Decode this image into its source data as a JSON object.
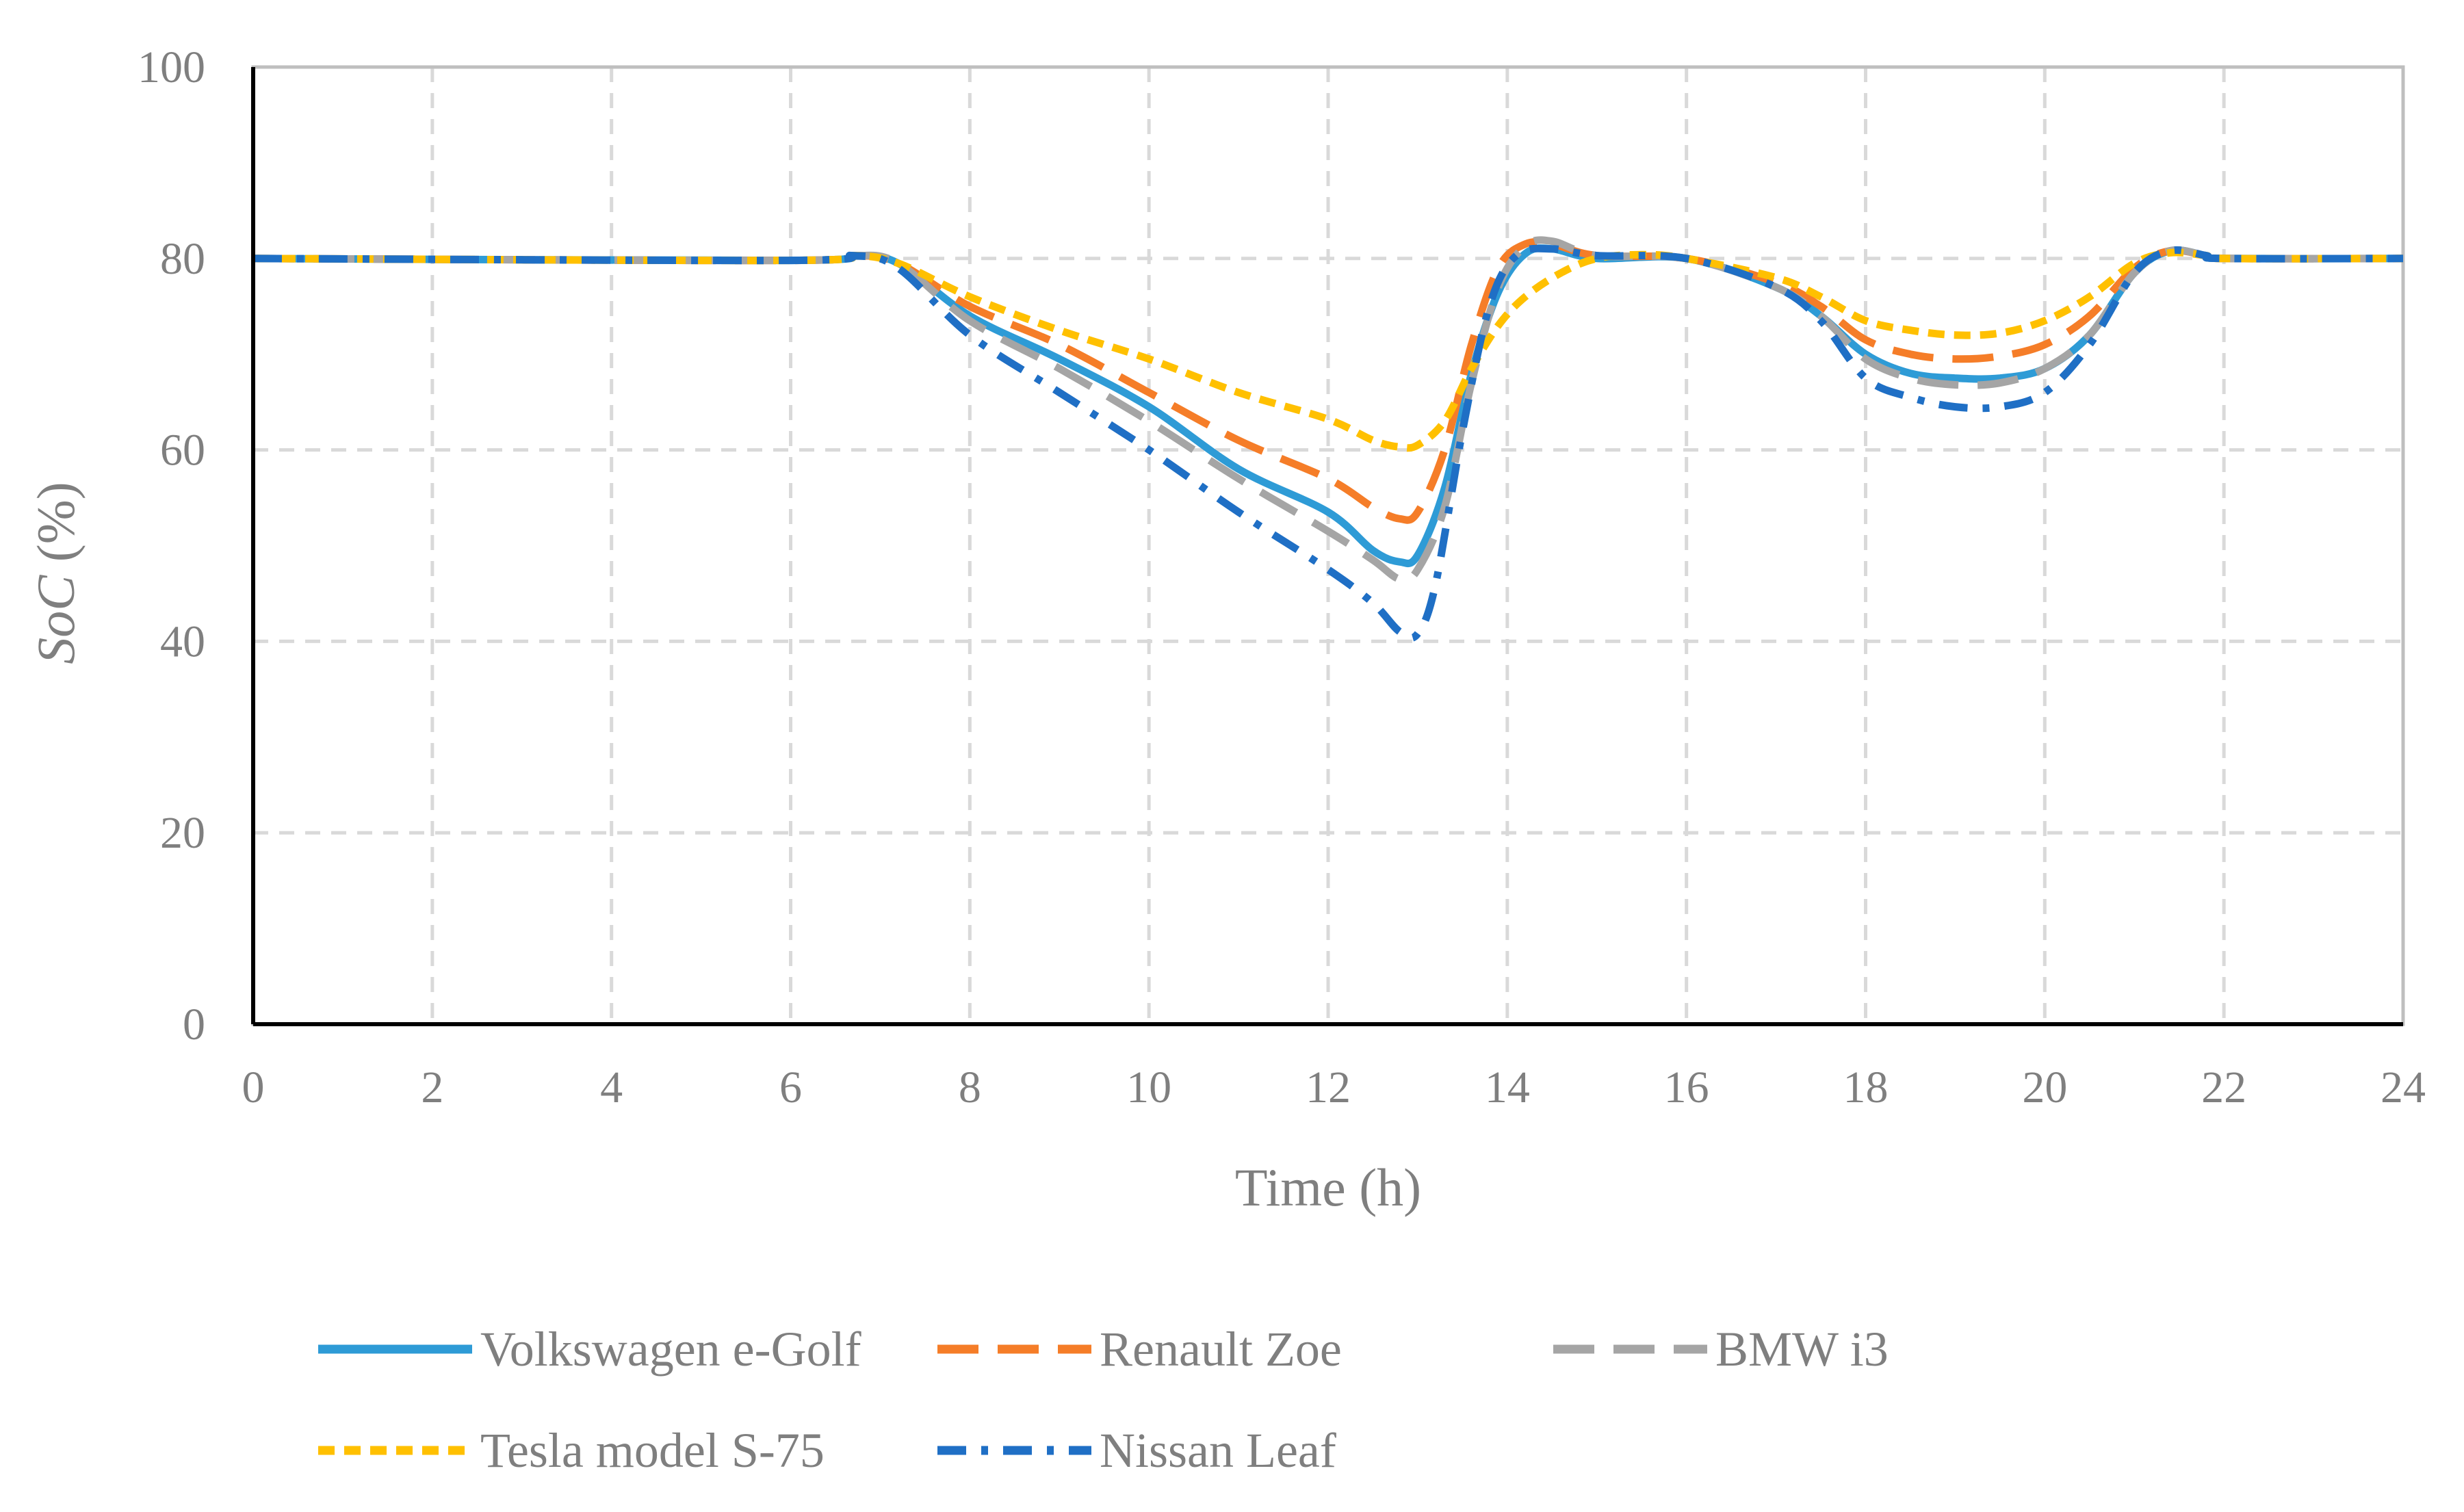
{
  "chart_data": {
    "type": "line",
    "title": "",
    "xlabel": "Time (h)",
    "ylabel_italic": "SoC",
    "ylabel_rest": " (%)",
    "xlim": [
      0,
      24
    ],
    "ylim": [
      0,
      100
    ],
    "x_ticks": [
      "0",
      "2",
      "4",
      "6",
      "8",
      "10",
      "12",
      "14",
      "16",
      "18",
      "20",
      "22",
      "24"
    ],
    "y_ticks": [
      "0",
      "20",
      "40",
      "60",
      "80",
      "100"
    ],
    "grid": true,
    "legend_position": "bottom",
    "series": [
      {
        "name": "Volkswagen e-Golf",
        "color": "#2e9bd6",
        "style": "solid",
        "points": [
          [
            0,
            80
          ],
          [
            6,
            79.8
          ],
          [
            6.7,
            80.3
          ],
          [
            7.2,
            79.5
          ],
          [
            8,
            74
          ],
          [
            9,
            69.5
          ],
          [
            10,
            64.5
          ],
          [
            11,
            58
          ],
          [
            12,
            53.5
          ],
          [
            12.5,
            49.5
          ],
          [
            12.8,
            48.3
          ],
          [
            13,
            49
          ],
          [
            13.3,
            56
          ],
          [
            13.6,
            68
          ],
          [
            13.9,
            76.5
          ],
          [
            14.2,
            80.5
          ],
          [
            14.5,
            81
          ],
          [
            15,
            80
          ],
          [
            16,
            80
          ],
          [
            17,
            77
          ],
          [
            17.5,
            74
          ],
          [
            18,
            70
          ],
          [
            18.5,
            68
          ],
          [
            19,
            67.5
          ],
          [
            19.5,
            67.5
          ],
          [
            20,
            68.5
          ],
          [
            20.5,
            72
          ],
          [
            21,
            78.5
          ],
          [
            21.4,
            80.8
          ],
          [
            21.8,
            80.3
          ],
          [
            22,
            80
          ],
          [
            24,
            80
          ]
        ]
      },
      {
        "name": "Renault Zoe",
        "color": "#f57d28",
        "style": "dash",
        "points": [
          [
            0,
            80
          ],
          [
            6,
            79.8
          ],
          [
            6.7,
            80.3
          ],
          [
            7.2,
            79.5
          ],
          [
            8,
            75
          ],
          [
            9,
            71
          ],
          [
            10,
            66
          ],
          [
            11,
            61
          ],
          [
            12,
            57
          ],
          [
            12.5,
            54
          ],
          [
            12.8,
            52.8
          ],
          [
            13,
            53.5
          ],
          [
            13.3,
            60
          ],
          [
            13.6,
            71
          ],
          [
            13.9,
            79
          ],
          [
            14.2,
            81.5
          ],
          [
            14.5,
            81.5
          ],
          [
            15,
            80.3
          ],
          [
            16,
            80
          ],
          [
            17,
            77.5
          ],
          [
            17.5,
            75
          ],
          [
            18,
            71.5
          ],
          [
            18.5,
            70
          ],
          [
            19,
            69.5
          ],
          [
            19.5,
            69.8
          ],
          [
            20,
            71
          ],
          [
            20.5,
            74
          ],
          [
            21,
            79
          ],
          [
            21.4,
            80.8
          ],
          [
            21.8,
            80.3
          ],
          [
            22,
            80
          ],
          [
            24,
            80
          ]
        ]
      },
      {
        "name": "BMW i3",
        "color": "#a5a5a5",
        "style": "dash",
        "points": [
          [
            0,
            80
          ],
          [
            6,
            79.8
          ],
          [
            6.7,
            80.3
          ],
          [
            7.2,
            79.5
          ],
          [
            8,
            73.5
          ],
          [
            9,
            68.5
          ],
          [
            10,
            63
          ],
          [
            11,
            57
          ],
          [
            12,
            51.5
          ],
          [
            12.5,
            48.5
          ],
          [
            12.8,
            46.5
          ],
          [
            13,
            47.5
          ],
          [
            13.3,
            54
          ],
          [
            13.6,
            67
          ],
          [
            13.9,
            77
          ],
          [
            14.2,
            81.3
          ],
          [
            14.5,
            81.8
          ],
          [
            15,
            80.3
          ],
          [
            16,
            80
          ],
          [
            17,
            77
          ],
          [
            17.5,
            74
          ],
          [
            18,
            69.5
          ],
          [
            18.5,
            67.5
          ],
          [
            19,
            66.8
          ],
          [
            19.5,
            67
          ],
          [
            20,
            68.5
          ],
          [
            20.5,
            72
          ],
          [
            21,
            78.5
          ],
          [
            21.4,
            80.8
          ],
          [
            21.8,
            80.3
          ],
          [
            22,
            80
          ],
          [
            24,
            80
          ]
        ]
      },
      {
        "name": "Tesla model S-75",
        "color": "#ffc000",
        "style": "shortdash",
        "points": [
          [
            0,
            80
          ],
          [
            6,
            79.8
          ],
          [
            6.7,
            80.3
          ],
          [
            7.2,
            79.5
          ],
          [
            8,
            76
          ],
          [
            9,
            72.5
          ],
          [
            10,
            69.5
          ],
          [
            11,
            66
          ],
          [
            12,
            63.2
          ],
          [
            12.5,
            61
          ],
          [
            12.8,
            60.3
          ],
          [
            13,
            60.5
          ],
          [
            13.3,
            63
          ],
          [
            13.6,
            68.5
          ],
          [
            13.9,
            73
          ],
          [
            14.2,
            76
          ],
          [
            14.6,
            78.5
          ],
          [
            15,
            80
          ],
          [
            15.5,
            80.4
          ],
          [
            16,
            80
          ],
          [
            17,
            78
          ],
          [
            17.5,
            76
          ],
          [
            18,
            73.5
          ],
          [
            18.5,
            72.5
          ],
          [
            19,
            72
          ],
          [
            19.5,
            72.2
          ],
          [
            20,
            73.5
          ],
          [
            20.5,
            76
          ],
          [
            21,
            79.5
          ],
          [
            21.4,
            80.6
          ],
          [
            21.8,
            80.3
          ],
          [
            22,
            80
          ],
          [
            24,
            80
          ]
        ]
      },
      {
        "name": "Nissan Leaf",
        "color": "#1f6fc5",
        "style": "dashdot",
        "points": [
          [
            0,
            80
          ],
          [
            6,
            79.8
          ],
          [
            6.7,
            80.3
          ],
          [
            7.2,
            79
          ],
          [
            8,
            72
          ],
          [
            9,
            66
          ],
          [
            10,
            60
          ],
          [
            11,
            53.5
          ],
          [
            12,
            47.5
          ],
          [
            12.5,
            44
          ],
          [
            12.8,
            41
          ],
          [
            13,
            40.8
          ],
          [
            13.2,
            46
          ],
          [
            13.5,
            62
          ],
          [
            13.8,
            75
          ],
          [
            14.1,
            80.3
          ],
          [
            14.5,
            81
          ],
          [
            15,
            80.3
          ],
          [
            16,
            80
          ],
          [
            17,
            77
          ],
          [
            17.5,
            73.5
          ],
          [
            18,
            67.5
          ],
          [
            18.5,
            65.5
          ],
          [
            19,
            64.5
          ],
          [
            19.5,
            64.5
          ],
          [
            20,
            66
          ],
          [
            20.5,
            71
          ],
          [
            21,
            78.5
          ],
          [
            21.4,
            80.8
          ],
          [
            21.8,
            80.3
          ],
          [
            22,
            80
          ],
          [
            24,
            80
          ]
        ]
      }
    ]
  }
}
